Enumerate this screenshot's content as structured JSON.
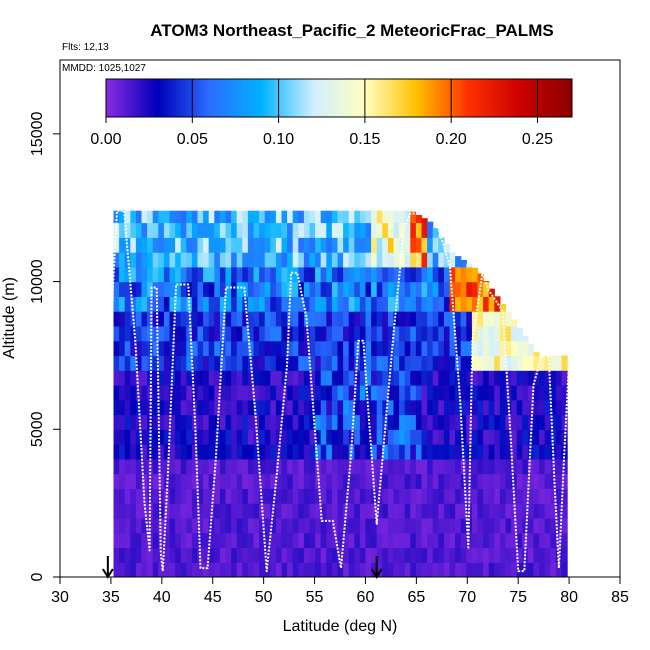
{
  "chart_data": {
    "type": "heatmap",
    "title": "ATOM3 Northeast_Pacific_2 MeteoricFrac_PALMS",
    "notes": [
      "Flts: 12,13",
      "MMDD: 1025,1027"
    ],
    "xlabel": "Latitude (deg N)",
    "ylabel": "Altitude (m)",
    "xlim": [
      30,
      85
    ],
    "ylim": [
      0,
      17500
    ],
    "xticks": [
      30,
      35,
      40,
      45,
      50,
      55,
      60,
      65,
      70,
      75,
      80,
      85
    ],
    "yticks": [
      0,
      5000,
      10000,
      15000
    ],
    "colorbar": {
      "range": [
        0,
        0.27
      ],
      "ticks": [
        "0.00",
        "0.05",
        "0.10",
        "0.15",
        "0.20",
        "0.25"
      ],
      "tick_values": [
        0,
        0.05,
        0.1,
        0.15,
        0.2,
        0.25
      ],
      "colors": [
        "#8a2be2",
        "#0000b8",
        "#2b6cff",
        "#00b2ff",
        "#cfeeff",
        "#ffffc0",
        "#ffc000",
        "#ff3000",
        "#cc0000",
        "#8b0000"
      ]
    },
    "arrow_latitudes": [
      34.7,
      61.1
    ],
    "flight_track": [
      [
        35.0,
        7200
      ],
      [
        35.2,
        9800
      ],
      [
        35.6,
        12400
      ],
      [
        36.3,
        12400
      ],
      [
        37.4,
        8000
      ],
      [
        38.3,
        2500
      ],
      [
        38.8,
        900
      ],
      [
        39.0,
        9800
      ],
      [
        39.5,
        9800
      ],
      [
        39.9,
        800
      ],
      [
        40.1,
        200
      ],
      [
        40.6,
        3500
      ],
      [
        41.4,
        9900
      ],
      [
        42.6,
        9900
      ],
      [
        43.3,
        5000
      ],
      [
        43.8,
        300
      ],
      [
        44.5,
        300
      ],
      [
        45.3,
        4000
      ],
      [
        46.3,
        9800
      ],
      [
        48.1,
        9800
      ],
      [
        49.2,
        5500
      ],
      [
        50.3,
        200
      ],
      [
        51.3,
        3500
      ],
      [
        52.3,
        7200
      ],
      [
        52.7,
        10300
      ],
      [
        53.3,
        10300
      ],
      [
        54.2,
        8800
      ],
      [
        55.7,
        1900
      ],
      [
        56.8,
        1900
      ],
      [
        57.6,
        300
      ],
      [
        58.6,
        4200
      ],
      [
        59.3,
        8000
      ],
      [
        59.8,
        8000
      ],
      [
        60.2,
        6000
      ],
      [
        61.1,
        1800
      ],
      [
        62.8,
        8400
      ],
      [
        63.8,
        11800
      ],
      [
        64.4,
        12300
      ],
      [
        65.8,
        12300
      ],
      [
        67.0,
        12000
      ],
      [
        68.3,
        10500
      ],
      [
        69.3,
        6000
      ],
      [
        70.1,
        1000
      ],
      [
        70.5,
        8000
      ],
      [
        71.5,
        10300
      ],
      [
        72.1,
        9700
      ],
      [
        73.5,
        9000
      ],
      [
        74.3,
        4500
      ],
      [
        75.0,
        200
      ],
      [
        75.6,
        200
      ],
      [
        76.5,
        6500
      ],
      [
        77.3,
        7500
      ],
      [
        78.0,
        7500
      ],
      [
        78.6,
        3000
      ],
      [
        79.0,
        300
      ],
      [
        79.5,
        4000
      ],
      [
        80.0,
        7300
      ]
    ],
    "grid": false,
    "legend": "none"
  }
}
